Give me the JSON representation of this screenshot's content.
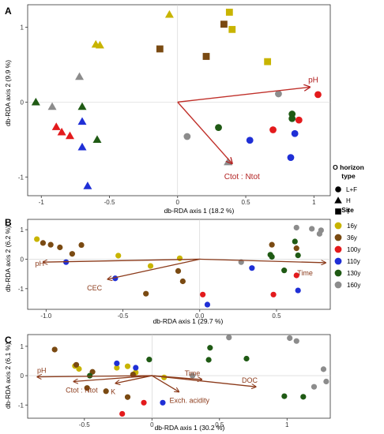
{
  "panels": {
    "a": {
      "letter": "A",
      "xlabel": "db-RDA axis 1 (18.2 %)",
      "ylabel": "db-RDA axis 2 (9.9 %)",
      "xticks": [
        "-1",
        "-0.5",
        "0",
        "0.5",
        "1"
      ],
      "yticks": [
        "-1",
        "0",
        "1"
      ],
      "arrows": {
        "ph": "pH",
        "ctot": "Ctot : Ntot"
      }
    },
    "b": {
      "letter": "B",
      "xlabel": "db-RDA axis 1 (29.7 %)",
      "ylabel": "db-RDA axis 2 (6.2 %)",
      "xticks": [
        "-1.0",
        "-0.5",
        "0.0",
        "0.5"
      ],
      "yticks": [
        "-1",
        "0",
        "1"
      ],
      "arrows": {
        "ph": "pH",
        "cec": "CEC",
        "time": "Time"
      }
    },
    "c": {
      "letter": "C",
      "xlabel": "db-RDA axis 1 (30.2 %)",
      "ylabel": "db-RDA axis 2 (6.1 %)",
      "xticks": [
        "-0.5",
        "0",
        "0.5",
        "1"
      ],
      "yticks": [
        "-1",
        "0",
        "1"
      ],
      "arrows": {
        "ph": "pH",
        "ctot": "Ctot : Ntot",
        "k": "K",
        "exch": "Exch. acidity",
        "time": "Time",
        "doc": "DOC"
      }
    }
  },
  "legend": {
    "horizon_title_1": "O horizon",
    "horizon_title_2": "type",
    "horizons": [
      {
        "label": "L+F",
        "shape": "circle"
      },
      {
        "label": "H",
        "shape": "triangle"
      },
      {
        "label": "T",
        "shape": "square"
      }
    ],
    "site_title": "Site",
    "sites": [
      {
        "label": "16y",
        "color": "#c8b400"
      },
      {
        "label": "36y",
        "color": "#7a4a12"
      },
      {
        "label": "100y",
        "color": "#e31a1c"
      },
      {
        "label": "110y",
        "color": "#1f2fd6"
      },
      {
        "label": "130y",
        "color": "#1f5a14"
      },
      {
        "label": "160y",
        "color": "#8c8c8c"
      }
    ]
  },
  "chart_data": [
    {
      "type": "scatter",
      "panel": "A",
      "xlabel": "db-RDA axis 1 (18.2 %)",
      "ylabel": "db-RDA axis 2 (9.9 %)",
      "xlim": [
        -1.1,
        1.12
      ],
      "ylim": [
        -1.25,
        1.3
      ],
      "points": [
        {
          "x": -0.57,
          "y": 0.76,
          "shape": "triangle",
          "site": "16y"
        },
        {
          "x": -0.6,
          "y": 0.77,
          "shape": "triangle",
          "site": "16y"
        },
        {
          "x": -0.06,
          "y": 1.17,
          "shape": "triangle",
          "site": "16y"
        },
        {
          "x": 0.66,
          "y": 0.54,
          "shape": "square",
          "site": "16y"
        },
        {
          "x": 0.38,
          "y": 1.2,
          "shape": "square",
          "site": "16y"
        },
        {
          "x": 0.4,
          "y": 0.97,
          "shape": "square",
          "site": "16y"
        },
        {
          "x": -0.13,
          "y": 0.71,
          "shape": "square",
          "site": "36y"
        },
        {
          "x": 0.21,
          "y": 0.61,
          "shape": "square",
          "site": "36y"
        },
        {
          "x": 0.34,
          "y": 1.04,
          "shape": "square",
          "site": "36y"
        },
        {
          "x": -0.89,
          "y": -0.33,
          "shape": "triangle",
          "site": "100y"
        },
        {
          "x": -0.85,
          "y": -0.4,
          "shape": "triangle",
          "site": "100y"
        },
        {
          "x": -0.79,
          "y": -0.45,
          "shape": "triangle",
          "site": "100y"
        },
        {
          "x": -0.7,
          "y": -0.6,
          "shape": "triangle",
          "site": "110y"
        },
        {
          "x": -0.66,
          "y": -1.12,
          "shape": "triangle",
          "site": "110y"
        },
        {
          "x": -0.7,
          "y": -0.26,
          "shape": "triangle",
          "site": "110y"
        },
        {
          "x": -0.59,
          "y": -0.5,
          "shape": "triangle",
          "site": "130y"
        },
        {
          "x": -0.7,
          "y": -0.06,
          "shape": "triangle",
          "site": "130y"
        },
        {
          "x": -1.04,
          "y": 0.0,
          "shape": "triangle",
          "site": "130y"
        },
        {
          "x": -0.92,
          "y": -0.06,
          "shape": "triangle",
          "site": "160y"
        },
        {
          "x": -0.72,
          "y": 0.34,
          "shape": "triangle",
          "site": "160y"
        },
        {
          "x": 0.37,
          "y": -0.8,
          "shape": "triangle",
          "site": "160y"
        },
        {
          "x": 0.7,
          "y": -0.37,
          "shape": "circle",
          "site": "100y"
        },
        {
          "x": 0.89,
          "y": -0.24,
          "shape": "circle",
          "site": "100y"
        },
        {
          "x": 1.03,
          "y": 0.1,
          "shape": "circle",
          "site": "100y"
        },
        {
          "x": 0.53,
          "y": -0.51,
          "shape": "circle",
          "site": "110y"
        },
        {
          "x": 0.83,
          "y": -0.74,
          "shape": "circle",
          "site": "110y"
        },
        {
          "x": 0.86,
          "y": -0.42,
          "shape": "circle",
          "site": "110y"
        },
        {
          "x": 0.3,
          "y": -0.34,
          "shape": "circle",
          "site": "130y"
        },
        {
          "x": 0.84,
          "y": -0.16,
          "shape": "circle",
          "site": "130y"
        },
        {
          "x": 0.84,
          "y": -0.22,
          "shape": "circle",
          "site": "130y"
        },
        {
          "x": 0.07,
          "y": -0.46,
          "shape": "circle",
          "site": "160y"
        },
        {
          "x": 0.74,
          "y": 0.11,
          "shape": "circle",
          "site": "160y"
        }
      ],
      "arrows": [
        {
          "label": "pH",
          "x": 0.97,
          "y": 0.2
        },
        {
          "label": "Ctot : Ntot",
          "x": 0.4,
          "y": -0.82
        }
      ]
    },
    {
      "type": "scatter",
      "panel": "B",
      "xlabel": "db-RDA axis 1 (29.7 %)",
      "ylabel": "db-RDA axis 2 (6.2 %)",
      "xlim": [
        -1.12,
        0.85
      ],
      "ylim": [
        -1.7,
        1.35
      ],
      "points": [
        {
          "x": -1.06,
          "y": 0.68,
          "site": "16y"
        },
        {
          "x": -0.53,
          "y": 0.12,
          "site": "16y"
        },
        {
          "x": -0.32,
          "y": -0.23,
          "site": "16y"
        },
        {
          "x": -0.13,
          "y": 0.03,
          "site": "16y"
        },
        {
          "x": -1.02,
          "y": 0.55,
          "site": "36y"
        },
        {
          "x": -0.97,
          "y": 0.49,
          "site": "36y"
        },
        {
          "x": -0.91,
          "y": 0.4,
          "site": "36y"
        },
        {
          "x": -0.83,
          "y": 0.18,
          "site": "36y"
        },
        {
          "x": -0.77,
          "y": 0.48,
          "site": "36y"
        },
        {
          "x": -0.14,
          "y": -0.4,
          "site": "36y"
        },
        {
          "x": -0.11,
          "y": -0.75,
          "site": "36y"
        },
        {
          "x": -0.35,
          "y": -1.17,
          "site": "36y"
        },
        {
          "x": 0.47,
          "y": 0.49,
          "site": "36y"
        },
        {
          "x": 0.63,
          "y": 0.37,
          "site": "36y"
        },
        {
          "x": 0.02,
          "y": -1.2,
          "site": "100y"
        },
        {
          "x": 0.63,
          "y": -0.55,
          "site": "100y"
        },
        {
          "x": 0.48,
          "y": -1.2,
          "site": "100y"
        },
        {
          "x": -0.87,
          "y": -0.1,
          "site": "110y"
        },
        {
          "x": -0.55,
          "y": -0.65,
          "site": "110y"
        },
        {
          "x": 0.05,
          "y": -1.54,
          "site": "110y"
        },
        {
          "x": 0.34,
          "y": -0.3,
          "site": "110y"
        },
        {
          "x": 0.64,
          "y": -1.06,
          "site": "110y"
        },
        {
          "x": 0.46,
          "y": 0.15,
          "site": "130y"
        },
        {
          "x": 0.55,
          "y": -0.38,
          "site": "130y"
        },
        {
          "x": 0.64,
          "y": 0.13,
          "site": "130y"
        },
        {
          "x": 0.47,
          "y": 0.08,
          "site": "130y"
        },
        {
          "x": 0.62,
          "y": 0.6,
          "site": "130y"
        },
        {
          "x": 0.27,
          "y": -0.1,
          "site": "160y"
        },
        {
          "x": 0.63,
          "y": 1.07,
          "site": "160y"
        },
        {
          "x": 0.73,
          "y": 1.03,
          "site": "160y"
        },
        {
          "x": 0.79,
          "y": 0.98,
          "site": "160y"
        },
        {
          "x": 0.78,
          "y": 0.86,
          "site": "160y"
        }
      ],
      "arrows": [
        {
          "label": "pH",
          "x": -1.02,
          "y": -0.1
        },
        {
          "label": "CEC",
          "x": -0.6,
          "y": -0.68
        },
        {
          "label": "Time",
          "x": 0.82,
          "y": -0.12
        }
      ]
    },
    {
      "type": "scatter",
      "panel": "C",
      "xlabel": "db-RDA axis 1 (30.2 %)",
      "ylabel": "db-RDA axis 2 (6.1 %)",
      "xlim": [
        -0.92,
        1.32
      ],
      "ylim": [
        -1.45,
        1.4
      ],
      "points": [
        {
          "x": -0.57,
          "y": 0.33,
          "site": "16y"
        },
        {
          "x": -0.54,
          "y": 0.23,
          "site": "16y"
        },
        {
          "x": -0.26,
          "y": 0.27,
          "site": "16y"
        },
        {
          "x": -0.18,
          "y": 0.32,
          "site": "16y"
        },
        {
          "x": -0.12,
          "y": 0.11,
          "site": "16y"
        },
        {
          "x": 0.09,
          "y": -0.06,
          "site": "16y"
        },
        {
          "x": -0.72,
          "y": 0.89,
          "site": "36y"
        },
        {
          "x": -0.56,
          "y": 0.37,
          "site": "36y"
        },
        {
          "x": -0.44,
          "y": 0.13,
          "site": "36y"
        },
        {
          "x": -0.48,
          "y": -0.42,
          "site": "36y"
        },
        {
          "x": -0.34,
          "y": -0.53,
          "site": "36y"
        },
        {
          "x": -0.18,
          "y": -0.73,
          "site": "36y"
        },
        {
          "x": -0.14,
          "y": 0.04,
          "site": "36y"
        },
        {
          "x": -0.22,
          "y": -1.3,
          "site": "100y"
        },
        {
          "x": -0.06,
          "y": -0.92,
          "site": "100y"
        },
        {
          "x": -0.26,
          "y": 0.42,
          "site": "110y"
        },
        {
          "x": -0.12,
          "y": 0.27,
          "site": "110y"
        },
        {
          "x": 0.08,
          "y": -0.92,
          "site": "110y"
        },
        {
          "x": -0.46,
          "y": 0.0,
          "site": "130y"
        },
        {
          "x": -0.02,
          "y": 0.55,
          "site": "130y"
        },
        {
          "x": 0.43,
          "y": 0.95,
          "site": "130y"
        },
        {
          "x": 0.42,
          "y": 0.54,
          "site": "130y"
        },
        {
          "x": 0.7,
          "y": 0.58,
          "site": "130y"
        },
        {
          "x": 0.98,
          "y": -0.7,
          "site": "130y"
        },
        {
          "x": 1.12,
          "y": -0.72,
          "site": "130y"
        },
        {
          "x": 0.57,
          "y": 1.3,
          "site": "160y"
        },
        {
          "x": 1.02,
          "y": 1.28,
          "site": "160y"
        },
        {
          "x": 1.07,
          "y": 1.18,
          "site": "160y"
        },
        {
          "x": 1.27,
          "y": 0.22,
          "site": "160y"
        },
        {
          "x": 1.29,
          "y": -0.2,
          "site": "160y"
        },
        {
          "x": 1.2,
          "y": -0.38,
          "site": "160y"
        },
        {
          "x": 0.3,
          "y": 0.0,
          "site": "160y"
        }
      ],
      "arrows": [
        {
          "label": "pH",
          "x": -0.85,
          "y": -0.04
        },
        {
          "label": "Ctot : Ntot",
          "x": -0.58,
          "y": -0.2
        },
        {
          "label": "K",
          "x": -0.27,
          "y": -0.26
        },
        {
          "label": "Exch. acidity",
          "x": 0.2,
          "y": -0.55
        },
        {
          "label": "Time",
          "x": 0.37,
          "y": -0.13
        },
        {
          "label": "DOC",
          "x": 0.77,
          "y": -0.38
        }
      ]
    }
  ]
}
